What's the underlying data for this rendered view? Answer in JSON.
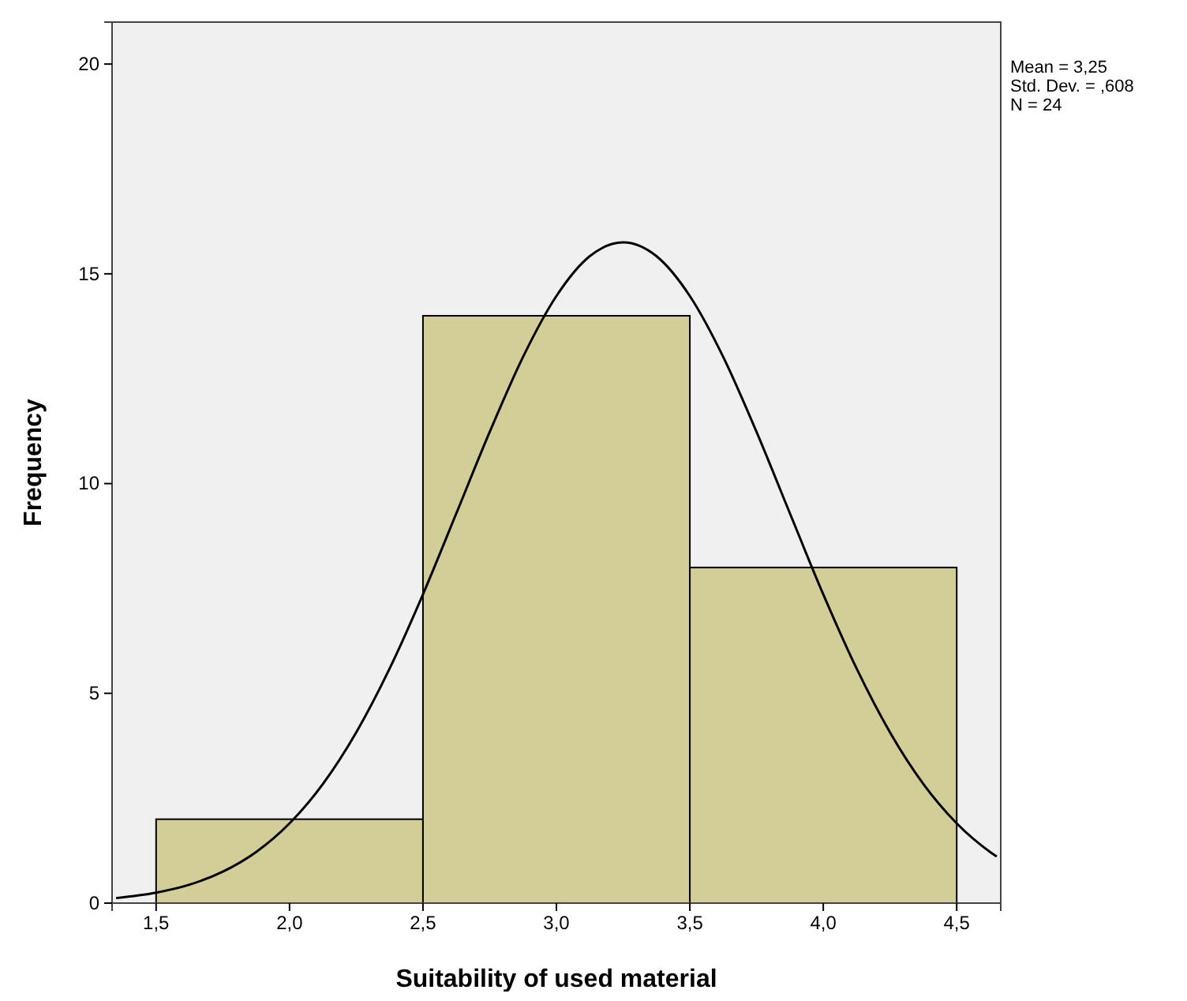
{
  "chart_data": {
    "type": "histogram",
    "xlabel": "Suitability of used material",
    "ylabel": "Frequency",
    "annotations": [
      "Mean = 3,25",
      "Std. Dev. = ,608",
      "N = 24"
    ],
    "xlim": [
      1.335,
      4.665
    ],
    "ylim": [
      0,
      21
    ],
    "xticks": [
      {
        "value": 1.5,
        "label": "1,5"
      },
      {
        "value": 2,
        "label": "2,0"
      },
      {
        "value": 2.5,
        "label": "2,5"
      },
      {
        "value": 3,
        "label": "3,0"
      },
      {
        "value": 3.5,
        "label": "3,5"
      },
      {
        "value": 4,
        "label": "4,0"
      },
      {
        "value": 4.5,
        "label": "4,5"
      }
    ],
    "yticks": [
      0,
      5,
      10,
      15,
      20
    ],
    "series": [
      {
        "color": "#d3ce97",
        "bins": [
          1.5,
          2.5,
          3.5,
          4.5
        ],
        "values": [
          2,
          14,
          8
        ]
      },
      {
        "type": "line",
        "color": "#000000",
        "x": [
          1.35,
          1.5,
          1.625,
          1.75,
          1.875,
          2,
          2.125,
          2.25,
          2.375,
          2.5,
          2.625,
          2.75,
          2.875,
          3,
          3.125,
          3.25,
          3.375,
          3.5,
          3.625,
          3.75,
          3.875,
          4,
          4.125,
          4.25,
          4.375,
          4.5,
          4.625,
          4.65
        ],
        "values": [
          0.12,
          0.25,
          0.44,
          0.75,
          1.22,
          1.9,
          2.84,
          4.07,
          5.59,
          7.36,
          9.29,
          11.23,
          13.02,
          14.47,
          15.42,
          15.75,
          15.42,
          14.47,
          13.02,
          11.23,
          9.29,
          7.36,
          5.59,
          4.07,
          2.84,
          1.9,
          1.22,
          1.11
        ]
      }
    ]
  }
}
